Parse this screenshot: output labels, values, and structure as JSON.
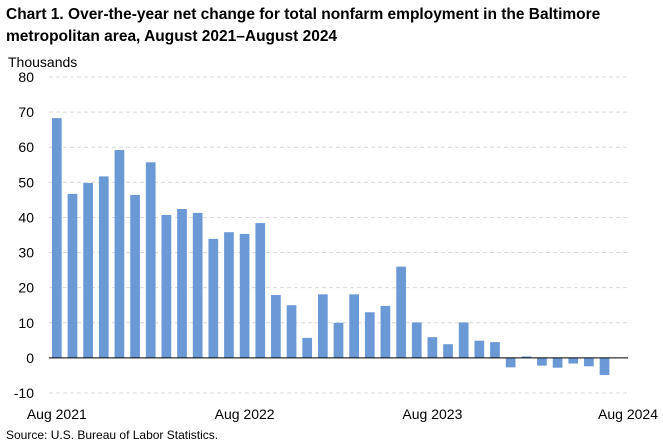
{
  "chart_data": {
    "type": "bar",
    "title": "Chart 1. Over-the-year net change for total nonfarm employment in the Baltimore metropolitan area, August 2021–August 2024",
    "ylabel": "Thousands",
    "xlabel": "",
    "ylim": [
      -10,
      80
    ],
    "yticks": [
      "80",
      "70",
      "60",
      "50",
      "40",
      "30",
      "20",
      "10",
      "0",
      "-10"
    ],
    "xtick_labels": [
      "Aug 2021",
      "Aug 2022",
      "Aug 2023",
      "Aug 2024"
    ],
    "grid": true,
    "bar_color": "#6b99d6",
    "categories": [
      "Aug 2021",
      "Sep 2021",
      "Oct 2021",
      "Nov 2021",
      "Dec 2021",
      "Jan 2022",
      "Feb 2022",
      "Mar 2022",
      "Apr 2022",
      "May 2022",
      "Jun 2022",
      "Jul 2022",
      "Aug 2022",
      "Sep 2022",
      "Oct 2022",
      "Nov 2022",
      "Dec 2022",
      "Jan 2023",
      "Feb 2023",
      "Mar 2023",
      "Apr 2023",
      "May 2023",
      "Jun 2023",
      "Jul 2023",
      "Aug 2023",
      "Sep 2023",
      "Oct 2023",
      "Nov 2023",
      "Dec 2023",
      "Jan 2024",
      "Feb 2024",
      "Mar 2024",
      "Apr 2024",
      "May 2024",
      "Jun 2024",
      "Jul 2024",
      "Aug 2024"
    ],
    "values": [
      68.3,
      46.7,
      49.8,
      51.7,
      59.2,
      46.4,
      55.7,
      40.7,
      42.4,
      41.3,
      33.9,
      35.8,
      35.3,
      38.4,
      17.9,
      15.0,
      5.7,
      18.1,
      10.0,
      18.1,
      13.0,
      14.8,
      26.0,
      10.1,
      5.9,
      3.9,
      10.1,
      4.9,
      4.5,
      -2.7,
      0.4,
      -2.2,
      -2.8,
      -1.6,
      -2.4,
      -4.9,
      0.0
    ]
  },
  "source": "Source: U.S. Bureau of Labor Statistics."
}
